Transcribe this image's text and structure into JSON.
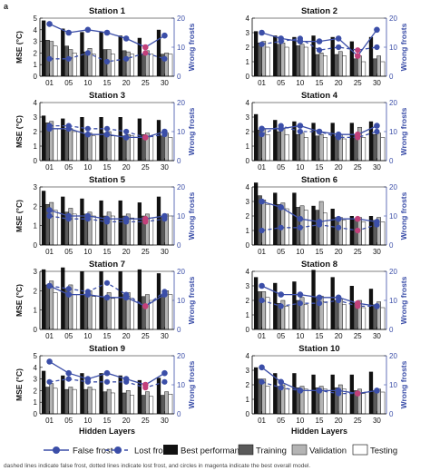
{
  "figure": {
    "top_caption": "a",
    "bottom_caption": "dashed lines indicate false frost, dotted lines indicate lost frost, and circles in magenta indicate the best overall model."
  },
  "legend": {
    "false_frost": "False frost",
    "lost_frost": "Lost frost",
    "best": "Best performance",
    "training": "Training",
    "validation": "Validation",
    "testing": "Testing"
  },
  "colors": {
    "best": "#111111",
    "training": "#5a5a5a",
    "validation": "#b4b4b4",
    "testing": "#ffffff",
    "frost_line": "#3b4ea8",
    "best_model": "#c2407a"
  },
  "chart_data": [
    {
      "type": "bar",
      "title": "Station 1",
      "categories": [
        "01",
        "05",
        "10",
        "15",
        "20",
        "25",
        "30"
      ],
      "xlabel": "",
      "ylabel": "MSE (°C)",
      "y2label": "Wrong frosts",
      "ylim": [
        0,
        5
      ],
      "yticks": [
        0,
        1,
        2,
        3,
        4,
        5
      ],
      "y2lim": [
        0,
        20
      ],
      "y2ticks": [
        0,
        10,
        20
      ],
      "series": [
        {
          "name": "Best performance",
          "values": [
            4.8,
            4.1,
            3.8,
            3.8,
            3.5,
            3.3,
            4.0
          ]
        },
        {
          "name": "Training",
          "values": [
            3.1,
            2.6,
            2.1,
            2.3,
            2.2,
            1.9,
            1.9
          ]
        },
        {
          "name": "Validation",
          "values": [
            3.0,
            2.3,
            2.4,
            2.3,
            2.1,
            2.2,
            2.0
          ]
        },
        {
          "name": "Testing",
          "values": [
            2.6,
            2.0,
            1.9,
            1.9,
            1.9,
            1.9,
            1.9
          ]
        }
      ],
      "false_frost": [
        18,
        15,
        16,
        15,
        13,
        10,
        14
      ],
      "lost_frost": [
        6,
        6,
        8,
        5,
        6,
        8,
        6
      ],
      "best_model_index": 5
    },
    {
      "type": "bar",
      "title": "Station 2",
      "categories": [
        "01",
        "05",
        "10",
        "15",
        "20",
        "25",
        "30"
      ],
      "xlabel": "",
      "ylabel": "",
      "y2label": "Wrong frosts",
      "ylim": [
        0,
        4
      ],
      "yticks": [
        0,
        1,
        2,
        3,
        4
      ],
      "y2lim": [
        0,
        20
      ],
      "y2ticks": [
        0,
        10,
        20
      ],
      "series": [
        {
          "name": "Best performance",
          "values": [
            3.1,
            2.8,
            2.7,
            2.8,
            2.7,
            2.4,
            2.7
          ]
        },
        {
          "name": "Training",
          "values": [
            2.3,
            2.2,
            2.1,
            1.5,
            1.5,
            1.2,
            1.2
          ]
        },
        {
          "name": "Validation",
          "values": [
            2.4,
            2.3,
            2.2,
            1.6,
            1.7,
            1.4,
            1.4
          ]
        },
        {
          "name": "Testing",
          "values": [
            2.0,
            2.0,
            2.0,
            1.4,
            1.4,
            1.0,
            1.0
          ]
        }
      ],
      "false_frost": [
        15,
        13,
        12,
        12,
        13,
        7,
        16
      ],
      "lost_frost": [
        11,
        12,
        13,
        9,
        10,
        9,
        10
      ],
      "best_model_index": 5
    },
    {
      "type": "bar",
      "title": "Station 3",
      "categories": [
        "01",
        "05",
        "10",
        "15",
        "20",
        "25",
        "30"
      ],
      "xlabel": "",
      "ylabel": "MSE (°C)",
      "y2label": "Wrong frosts",
      "ylim": [
        0,
        4
      ],
      "yticks": [
        0,
        1,
        2,
        3,
        4
      ],
      "y2lim": [
        0,
        20
      ],
      "y2ticks": [
        0,
        10,
        20
      ],
      "series": [
        {
          "name": "Best performance",
          "values": [
            3.1,
            2.9,
            3.0,
            3.0,
            3.0,
            2.9,
            2.8
          ]
        },
        {
          "name": "Training",
          "values": [
            2.6,
            2.1,
            1.8,
            1.9,
            1.7,
            1.8,
            1.7
          ]
        },
        {
          "name": "Validation",
          "values": [
            2.7,
            2.2,
            1.9,
            2.0,
            1.8,
            1.9,
            1.9
          ]
        },
        {
          "name": "Testing",
          "values": [
            2.2,
            2.0,
            1.7,
            1.7,
            1.7,
            1.7,
            1.6
          ]
        }
      ],
      "false_frost": [
        11,
        11,
        9,
        9,
        8,
        8,
        10
      ],
      "lost_frost": [
        12,
        12,
        11,
        11,
        10,
        8,
        9
      ],
      "best_model_index": 5
    },
    {
      "type": "bar",
      "title": "Station 4",
      "categories": [
        "01",
        "05",
        "10",
        "15",
        "20",
        "25",
        "30"
      ],
      "xlabel": "",
      "ylabel": "",
      "y2label": "Wrong frosts",
      "ylim": [
        0,
        4
      ],
      "yticks": [
        0,
        1,
        2,
        3,
        4
      ],
      "y2lim": [
        0,
        20
      ],
      "y2ticks": [
        0,
        10,
        20
      ],
      "series": [
        {
          "name": "Best performance",
          "values": [
            3.2,
            2.8,
            2.7,
            2.6,
            2.6,
            2.6,
            2.7
          ]
        },
        {
          "name": "Training",
          "values": [
            2.1,
            2.0,
            1.8,
            1.7,
            1.7,
            1.8,
            1.8
          ]
        },
        {
          "name": "Validation",
          "values": [
            2.2,
            2.2,
            1.9,
            1.8,
            1.8,
            2.3,
            1.9
          ]
        },
        {
          "name": "Testing",
          "values": [
            1.8,
            1.8,
            1.6,
            1.6,
            1.5,
            1.6,
            1.6
          ]
        }
      ],
      "false_frost": [
        11,
        11,
        12,
        10,
        9,
        9,
        12
      ],
      "lost_frost": [
        9,
        12,
        10,
        10,
        8,
        8,
        10
      ],
      "best_model_index": 5
    },
    {
      "type": "bar",
      "title": "Station 5",
      "categories": [
        "01",
        "05",
        "10",
        "15",
        "20",
        "25",
        "30"
      ],
      "xlabel": "",
      "ylabel": "MSE (°C)",
      "y2label": "Wrong frosts",
      "ylim": [
        0,
        3
      ],
      "yticks": [
        0,
        1,
        2,
        3
      ],
      "y2lim": [
        0,
        20
      ],
      "y2ticks": [
        0,
        10,
        20
      ],
      "series": [
        {
          "name": "Best performance",
          "values": [
            2.8,
            2.5,
            2.4,
            2.3,
            2.3,
            2.2,
            2.5
          ]
        },
        {
          "name": "Training",
          "values": [
            2.1,
            1.7,
            1.6,
            1.5,
            1.5,
            1.5,
            1.5
          ]
        },
        {
          "name": "Validation",
          "values": [
            2.2,
            1.9,
            1.7,
            1.7,
            1.6,
            1.6,
            1.6
          ]
        },
        {
          "name": "Testing",
          "values": [
            1.8,
            1.6,
            1.5,
            1.5,
            1.4,
            1.4,
            1.5
          ]
        }
      ],
      "false_frost": [
        12,
        10,
        10,
        9,
        9,
        9,
        10
      ],
      "lost_frost": [
        10,
        9,
        9,
        8,
        8,
        8,
        9
      ],
      "best_model_index": 5
    },
    {
      "type": "bar",
      "title": "Station 6",
      "categories": [
        "01",
        "05",
        "10",
        "15",
        "20",
        "25",
        "30"
      ],
      "xlabel": "",
      "ylabel": "",
      "y2label": "Wrong frosts",
      "ylim": [
        0,
        4
      ],
      "yticks": [
        0,
        1,
        2,
        3,
        4
      ],
      "y2lim": [
        0,
        20
      ],
      "y2ticks": [
        0,
        10,
        20
      ],
      "series": [
        {
          "name": "Best performance",
          "values": [
            4.3,
            3.6,
            3.6,
            2.7,
            2.5,
            2.0,
            2.0
          ]
        },
        {
          "name": "Training",
          "values": [
            3.4,
            2.8,
            2.6,
            2.4,
            1.9,
            1.8,
            1.7
          ]
        },
        {
          "name": "Validation",
          "values": [
            3.1,
            2.9,
            2.7,
            3.0,
            1.9,
            1.9,
            1.9
          ]
        },
        {
          "name": "Testing",
          "values": [
            2.8,
            2.5,
            2.4,
            2.2,
            1.7,
            1.6,
            1.6
          ]
        }
      ],
      "false_frost": [
        15,
        13,
        9,
        8,
        9,
        9,
        8
      ],
      "lost_frost": [
        5,
        6,
        6,
        7,
        6,
        5,
        7
      ],
      "best_model_index": 5
    },
    {
      "type": "bar",
      "title": "Station 7",
      "categories": [
        "01",
        "05",
        "10",
        "15",
        "20",
        "25",
        "30"
      ],
      "xlabel": "",
      "ylabel": "MSE (°C)",
      "y2label": "Wrong frosts",
      "ylim": [
        0,
        3
      ],
      "yticks": [
        0,
        1,
        2,
        3
      ],
      "y2lim": [
        0,
        20
      ],
      "y2ticks": [
        0,
        10,
        20
      ],
      "series": [
        {
          "name": "Best performance",
          "values": [
            3.1,
            3.2,
            3.0,
            3.0,
            3.0,
            3.1,
            2.9
          ]
        },
        {
          "name": "Training",
          "values": [
            2.3,
            2.1,
            1.8,
            1.7,
            1.8,
            1.7,
            1.8
          ]
        },
        {
          "name": "Validation",
          "values": [
            2.5,
            2.3,
            2.0,
            1.9,
            1.9,
            1.8,
            2.0
          ]
        },
        {
          "name": "Testing",
          "values": [
            1.9,
            1.8,
            1.7,
            1.6,
            1.6,
            1.5,
            1.8
          ]
        }
      ],
      "false_frost": [
        15,
        12,
        12,
        11,
        11,
        8,
        12
      ],
      "lost_frost": [
        15,
        14,
        13,
        16,
        12,
        8,
        13
      ],
      "best_model_index": 5
    },
    {
      "type": "bar",
      "title": "Station 8",
      "categories": [
        "01",
        "05",
        "10",
        "15",
        "20",
        "25",
        "30"
      ],
      "xlabel": "",
      "ylabel": "",
      "y2label": "Wrong frosts",
      "ylim": [
        0,
        4
      ],
      "yticks": [
        0,
        1,
        2,
        3,
        4
      ],
      "y2lim": [
        0,
        20
      ],
      "y2ticks": [
        0,
        10,
        20
      ],
      "series": [
        {
          "name": "Best performance",
          "values": [
            3.6,
            3.2,
            3.3,
            4.1,
            3.6,
            3.0,
            2.8
          ]
        },
        {
          "name": "Training",
          "values": [
            2.6,
            1.8,
            2.0,
            2.2,
            2.0,
            1.8,
            1.7
          ]
        },
        {
          "name": "Validation",
          "values": [
            2.6,
            2.0,
            2.2,
            2.3,
            2.1,
            2.0,
            1.9
          ]
        },
        {
          "name": "Testing",
          "values": [
            2.2,
            1.6,
            1.7,
            1.9,
            1.7,
            1.5,
            1.5
          ]
        }
      ],
      "false_frost": [
        15,
        12,
        12,
        11,
        11,
        9,
        8
      ],
      "lost_frost": [
        10,
        8,
        9,
        9,
        10,
        8,
        8
      ],
      "best_model_index": 5
    },
    {
      "type": "bar",
      "title": "Station 9",
      "categories": [
        "01",
        "05",
        "10",
        "15",
        "20",
        "25",
        "30"
      ],
      "xlabel": "Hidden Layers",
      "ylabel": "MSE (°C)",
      "y2label": "Wrong frosts",
      "ylim": [
        0,
        5
      ],
      "yticks": [
        0,
        1,
        2,
        3,
        4,
        5
      ],
      "y2lim": [
        0,
        20
      ],
      "y2ticks": [
        0,
        10,
        20
      ],
      "series": [
        {
          "name": "Best performance",
          "values": [
            3.7,
            3.3,
            3.5,
            3.5,
            3.3,
            2.9,
            3.1
          ]
        },
        {
          "name": "Training",
          "values": [
            2.3,
            2.1,
            2.1,
            1.9,
            1.8,
            1.6,
            1.6
          ]
        },
        {
          "name": "Validation",
          "values": [
            2.6,
            2.3,
            2.3,
            2.1,
            2.0,
            1.9,
            1.9
          ]
        },
        {
          "name": "Testing",
          "values": [
            2.2,
            2.1,
            2.1,
            1.8,
            1.6,
            1.5,
            1.7
          ]
        }
      ],
      "false_frost": [
        18,
        14,
        12,
        14,
        12,
        10,
        14
      ],
      "lost_frost": [
        11,
        12,
        11,
        11,
        11,
        9,
        11
      ],
      "best_model_index": 5
    },
    {
      "type": "bar",
      "title": "Station 10",
      "categories": [
        "01",
        "05",
        "10",
        "15",
        "20",
        "25",
        "30"
      ],
      "xlabel": "Hidden Layers",
      "ylabel": "",
      "y2label": "Wrong frosts",
      "ylim": [
        0,
        4
      ],
      "yticks": [
        0,
        1,
        2,
        3,
        4
      ],
      "y2lim": [
        0,
        20
      ],
      "y2ticks": [
        0,
        10,
        20
      ],
      "series": [
        {
          "name": "Best performance",
          "values": [
            3.2,
            2.8,
            2.8,
            2.7,
            2.7,
            2.7,
            2.9
          ]
        },
        {
          "name": "Training",
          "values": [
            2.4,
            1.9,
            1.8,
            1.8,
            1.8,
            1.6,
            1.6
          ]
        },
        {
          "name": "Validation",
          "values": [
            2.4,
            2.0,
            1.9,
            1.9,
            2.0,
            1.7,
            1.7
          ]
        },
        {
          "name": "Testing",
          "values": [
            1.9,
            1.7,
            1.7,
            1.7,
            1.7,
            1.4,
            1.5
          ]
        }
      ],
      "false_frost": [
        16,
        11,
        8,
        8,
        8,
        7,
        8
      ],
      "lost_frost": [
        11,
        9,
        8,
        8,
        7,
        7,
        8
      ],
      "best_model_index": 5
    }
  ]
}
